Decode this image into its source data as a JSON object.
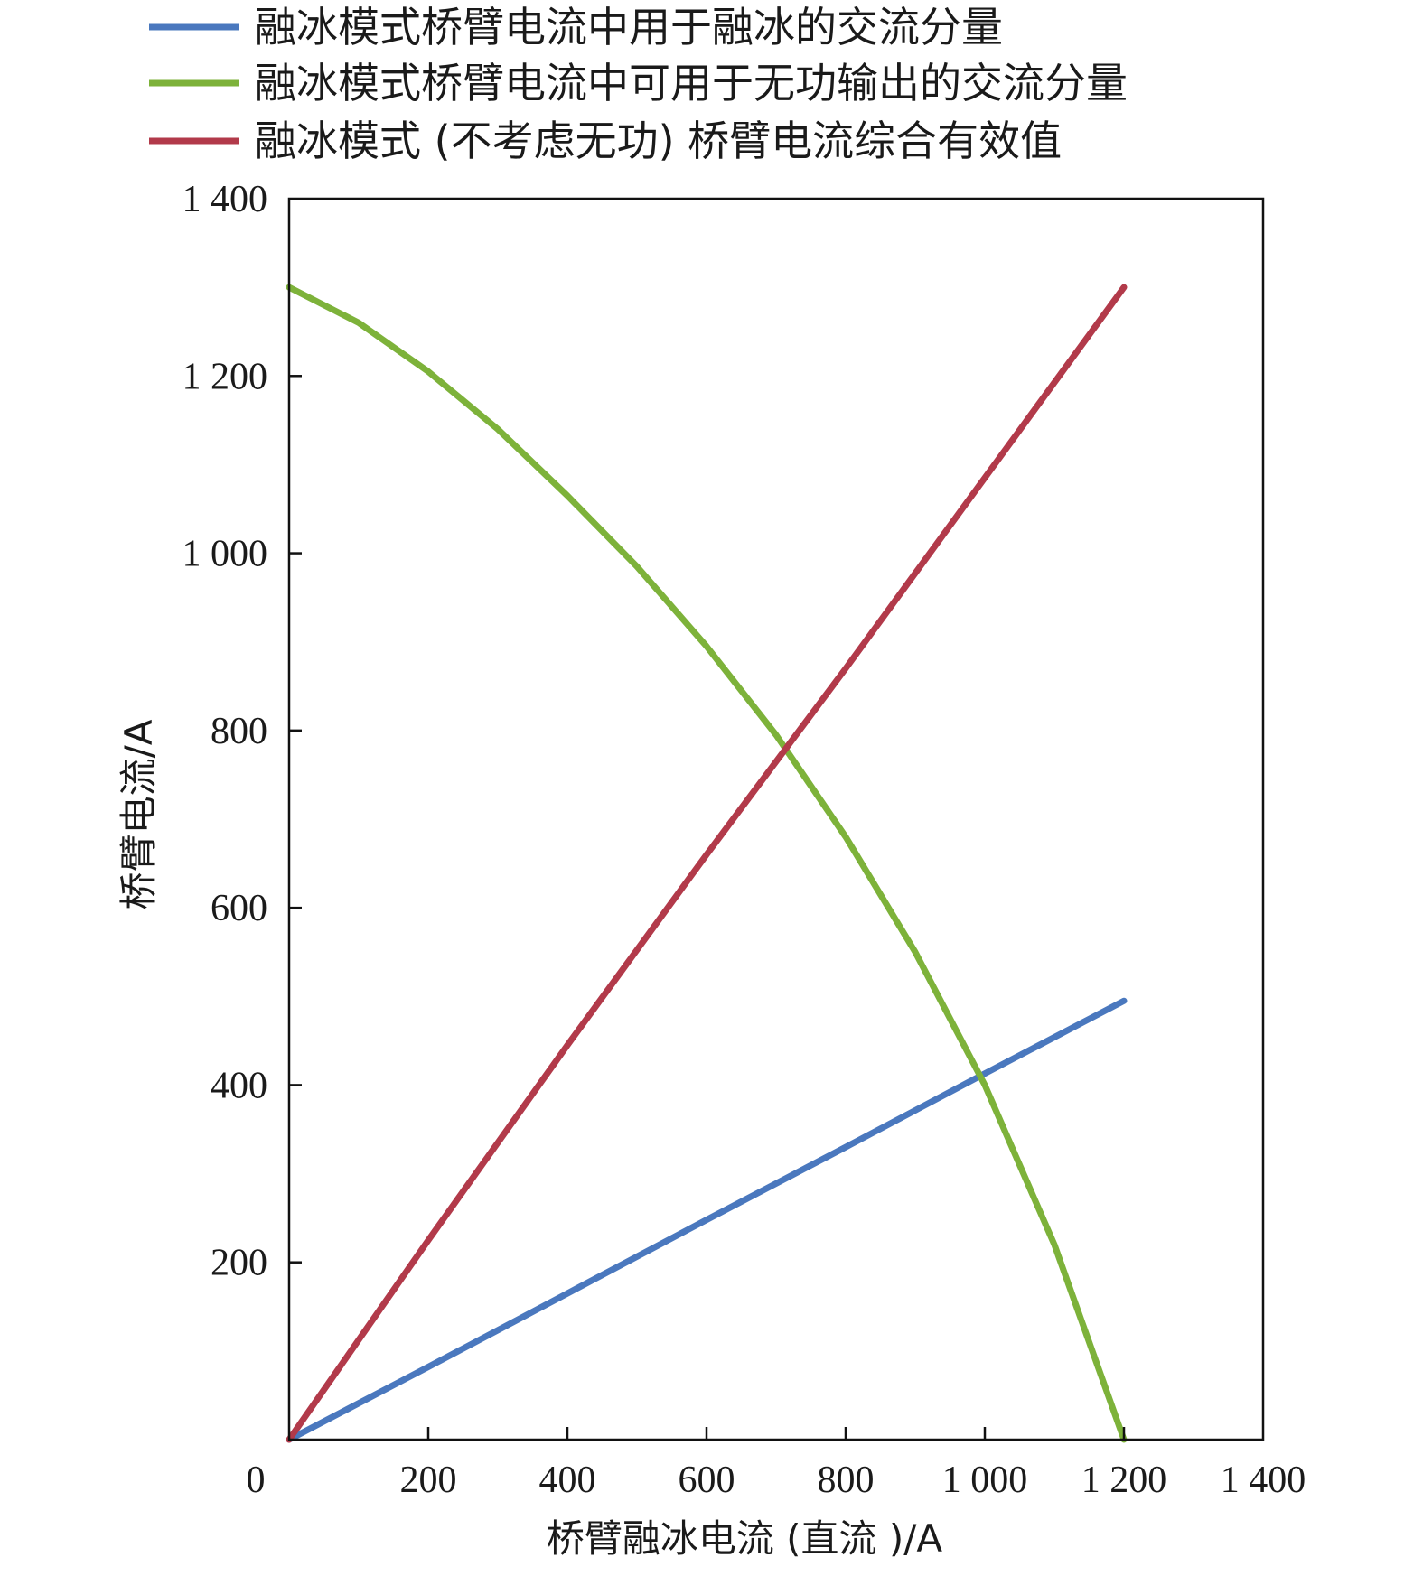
{
  "chart_data": {
    "type": "line",
    "xlabel": "桥臂融冰电流 (直流 )/A",
    "ylabel": "桥臂电流/A",
    "xlim": [
      0,
      1400
    ],
    "ylim": [
      0,
      1400
    ],
    "x_ticks": [
      {
        "value": 0,
        "label": "0"
      },
      {
        "value": 200,
        "label": "200"
      },
      {
        "value": 400,
        "label": "400"
      },
      {
        "value": 600,
        "label": "600"
      },
      {
        "value": 800,
        "label": "800"
      },
      {
        "value": 1000,
        "label": "1 000"
      },
      {
        "value": 1200,
        "label": "1 200"
      },
      {
        "value": 1400,
        "label": "1 400"
      }
    ],
    "y_ticks": [
      {
        "value": 200,
        "label": "200"
      },
      {
        "value": 400,
        "label": "400"
      },
      {
        "value": 600,
        "label": "600"
      },
      {
        "value": 800,
        "label": "800"
      },
      {
        "value": 1000,
        "label": "1 000"
      },
      {
        "value": 1200,
        "label": "1 200"
      },
      {
        "value": 1400,
        "label": "1 400"
      }
    ],
    "grid": false,
    "legend_position": "top",
    "series": [
      {
        "name": "融冰模式桥臂电流中用于融冰的交流分量",
        "color": "#4a78be",
        "x": [
          0,
          200,
          400,
          600,
          800,
          1000,
          1200
        ],
        "y": [
          0,
          82,
          165,
          248,
          330,
          413,
          495
        ]
      },
      {
        "name": "融冰模式桥臂电流中可用于无功输出的交流分量",
        "color": "#7db23a",
        "x": [
          0,
          100,
          200,
          300,
          400,
          500,
          600,
          700,
          800,
          900,
          1000,
          1100,
          1200
        ],
        "y": [
          1300,
          1260,
          1205,
          1140,
          1065,
          985,
          895,
          795,
          680,
          550,
          400,
          220,
          0
        ]
      },
      {
        "name": "融冰模式 (不考虑无功) 桥臂电流综合有效值",
        "color": "#b23a4a",
        "x": [
          0,
          200,
          400,
          600,
          800,
          1000,
          1200
        ],
        "y": [
          0,
          225,
          445,
          660,
          870,
          1085,
          1300
        ]
      }
    ]
  }
}
